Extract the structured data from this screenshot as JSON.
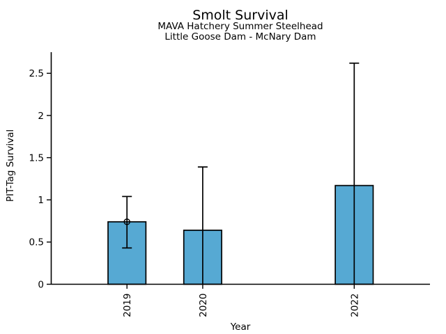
{
  "chart_data": {
    "type": "bar",
    "title": "Smolt Survival",
    "subtitle_lines": [
      "MAVA Hatchery Summer Steelhead",
      "Little Goose Dam - McNary Dam"
    ],
    "xlabel": "Year",
    "ylabel": "PIT-Tag Survival",
    "x": [
      2019,
      2020,
      2022
    ],
    "values": [
      0.74,
      0.64,
      1.17
    ],
    "error_low": [
      0.43,
      0,
      0
    ],
    "error_high": [
      1.04,
      1.39,
      2.62
    ],
    "error_low_cap": [
      true,
      false,
      false
    ],
    "error_high_cap": [
      true,
      true,
      true
    ],
    "point_marker": [
      true,
      false,
      false
    ],
    "xtick_labels": [
      "2019",
      "2020",
      "2022"
    ],
    "xtick_rotation": 90,
    "yticks": [
      0,
      0.5,
      1,
      1.5,
      2,
      2.5
    ],
    "ytick_labels": [
      "0",
      "0.5",
      "1",
      "1.5",
      "2",
      "2.5"
    ],
    "xlim": [
      2018,
      2023
    ],
    "ylim": [
      0,
      2.75
    ],
    "bar_width": 0.5,
    "grid": false,
    "legend": "none",
    "colors": {
      "bar_fill": "#56A9D3",
      "bar_edge": "#000000",
      "error_bar": "#000000",
      "axis": "#000000",
      "text": "#000000",
      "background": "#ffffff"
    }
  }
}
